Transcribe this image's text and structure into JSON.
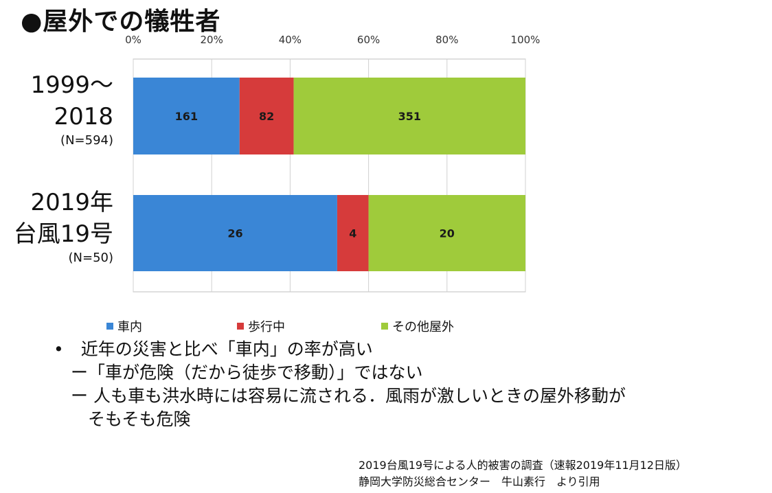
{
  "title": "●屋外での犠牲者",
  "chart_data": {
    "type": "bar",
    "orientation": "horizontal",
    "stacked": "percent",
    "title": "",
    "x_ticks": [
      "0%",
      "20%",
      "40%",
      "60%",
      "80%",
      "100%"
    ],
    "xlim": [
      0,
      100
    ],
    "categories": [
      {
        "lines": [
          "1999～",
          "2018"
        ],
        "n_label": "(N=594)",
        "total": 594
      },
      {
        "lines": [
          "2019年",
          "台風19号"
        ],
        "n_label": "(N=50)",
        "total": 50
      }
    ],
    "series": [
      {
        "name": "車内",
        "color": "#3a86d6",
        "values": [
          161,
          26
        ]
      },
      {
        "name": "歩行中",
        "color": "#d63b3b",
        "values": [
          82,
          4
        ]
      },
      {
        "name": "その他屋外",
        "color": "#9fcb3b",
        "values": [
          351,
          20
        ]
      }
    ],
    "legend_position": "bottom",
    "grid": true
  },
  "bullets": [
    "•　近年の災害と比べ「車内」の率が高い",
    "　ー「車が危険（だから徒歩で移動）」ではない",
    "　ー 人も車も洪水時には容易に流される．風雨が激しいときの屋外移動が",
    "　　そもそも危険"
  ],
  "source": [
    "2019台風19号による人的被害の調査（速報2019年11月12日版）",
    "静岡大学防災総合センター　牛山素行　より引用"
  ]
}
